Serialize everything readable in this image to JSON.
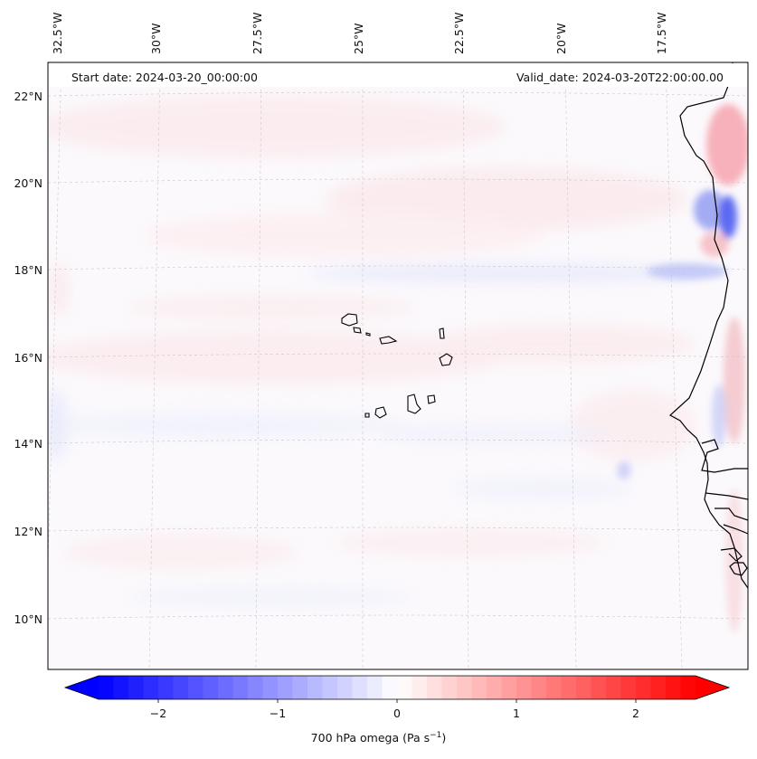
{
  "map": {
    "start_label": "Start date: 2024-03-20_00:00:00",
    "valid_label": "Valid_date: 2024-03-20T22:00:00.00",
    "lon_labels": [
      "32.5°W",
      "30°W",
      "27.5°W",
      "25°W",
      "22.5°W",
      "20°W",
      "17.5°W"
    ],
    "lat_labels": [
      "22°N",
      "20°N",
      "18°N",
      "16°N",
      "14°N",
      "12°N",
      "10°N"
    ],
    "variable": "700 hPa omega",
    "units_base": "(Pa s",
    "units_exp": "−1",
    "units_close": ")"
  },
  "colorbar": {
    "ticks": [
      "−2",
      "−1",
      "0",
      "1",
      "2"
    ],
    "tick_values": [
      -2,
      -1,
      0,
      1,
      2
    ],
    "range": [
      -2.5,
      2.5
    ],
    "neg_color": "#0000ff",
    "pos_color": "#ff0000",
    "mid_color": "#ffffff"
  },
  "colors": {
    "coast": "#000000",
    "grid": "#bdbdbd",
    "field_base": "#fbf9fc"
  }
}
